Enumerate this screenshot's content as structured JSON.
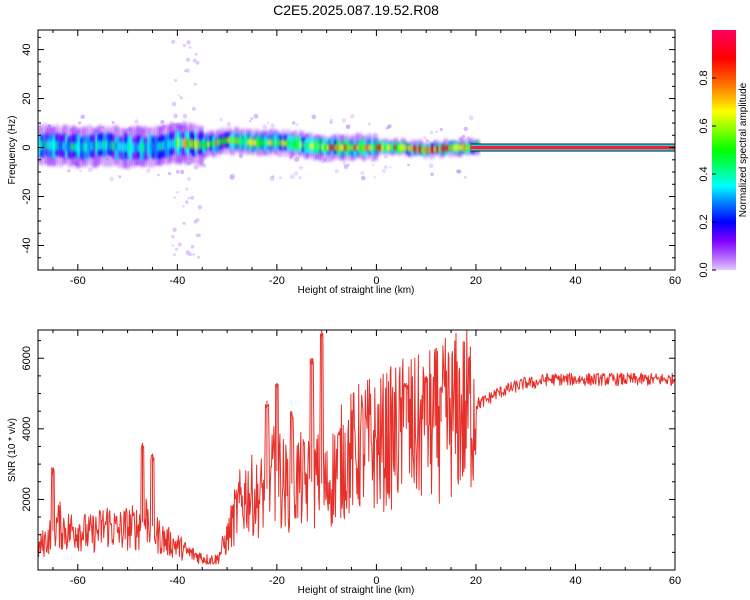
{
  "title": "C2E5.2025.087.19.52.R08",
  "colors": {
    "snr_line": "#e8302a",
    "colormap": [
      "#e6c8ff",
      "#b86cff",
      "#8000ff",
      "#0000ff",
      "#0080ff",
      "#00ffff",
      "#00ff80",
      "#00ff00",
      "#80ff00",
      "#ffff00",
      "#ff8000",
      "#ff0000",
      "#ff0060"
    ]
  },
  "chart_data": [
    {
      "type": "heatmap",
      "name": "spectrogram",
      "xlabel": "Height of straight line (km)",
      "ylabel": "Frequency (Hz)",
      "xlim": [
        -68,
        60
      ],
      "ylim": [
        -50,
        48
      ],
      "xticks": [
        -60,
        -40,
        -20,
        0,
        20,
        40,
        60
      ],
      "yticks": [
        -40,
        -20,
        0,
        20,
        40
      ],
      "ridge": [
        {
          "x": -66,
          "y": 1
        },
        {
          "x": -60,
          "y": 0
        },
        {
          "x": -55,
          "y": 1
        },
        {
          "x": -50,
          "y": 0
        },
        {
          "x": -45,
          "y": 0
        },
        {
          "x": -40,
          "y": 2
        },
        {
          "x": -35,
          "y": 1
        },
        {
          "x": -30,
          "y": 3
        },
        {
          "x": -25,
          "y": 2
        },
        {
          "x": -20,
          "y": 2
        },
        {
          "x": -15,
          "y": 1
        },
        {
          "x": -10,
          "y": 0
        },
        {
          "x": -5,
          "y": 0
        },
        {
          "x": 0,
          "y": 0
        },
        {
          "x": 5,
          "y": 0
        },
        {
          "x": 10,
          "y": -1
        },
        {
          "x": 15,
          "y": 0
        },
        {
          "x": 20,
          "y": 0
        },
        {
          "x": 60,
          "y": 0
        }
      ],
      "colorbar": {
        "label": "Normalized spectral amplitude",
        "ticks": [
          "0.0",
          "0.2",
          "0.4",
          "0.6",
          "0.8"
        ],
        "tick_values": [
          0,
          0.2,
          0.4,
          0.6,
          0.8
        ],
        "range": [
          0,
          1
        ]
      }
    },
    {
      "type": "line",
      "name": "snr",
      "xlabel": "Height of straight line (km)",
      "ylabel": "SNR (10 * v/v)",
      "xlim": [
        -68,
        60
      ],
      "ylim": [
        0,
        6800
      ],
      "xticks": [
        -60,
        -40,
        -20,
        0,
        20,
        40,
        60
      ],
      "yticks": [
        2000,
        4000,
        6000
      ],
      "series": [
        {
          "color": "#e8302a",
          "x": [
            -68,
            -66,
            -64,
            -62,
            -60,
            -58,
            -56,
            -54,
            -52,
            -50,
            -48,
            -46,
            -44,
            -42,
            -40,
            -38,
            -36,
            -34,
            -32,
            -30,
            -28,
            -26,
            -24,
            -22,
            -20,
            -18,
            -16,
            -14,
            -12,
            -10,
            -8,
            -6,
            -4,
            -2,
            0,
            2,
            4,
            6,
            8,
            10,
            12,
            14,
            16,
            18,
            20,
            22,
            24,
            26,
            28,
            30,
            32,
            34,
            36,
            38,
            40,
            42,
            44,
            46,
            48,
            50,
            52,
            54,
            56,
            58,
            60
          ],
          "y": [
            600,
            900,
            1300,
            1100,
            1200,
            1000,
            1100,
            1300,
            1100,
            1200,
            1200,
            1500,
            1000,
            800,
            700,
            500,
            400,
            300,
            300,
            900,
            1700,
            2200,
            2000,
            2300,
            2800,
            2300,
            2600,
            2400,
            2600,
            2300,
            2900,
            3200,
            3400,
            3600,
            3500,
            3700,
            3800,
            4000,
            3900,
            4100,
            4100,
            4300,
            4400,
            4500,
            4700,
            4800,
            5000,
            5100,
            5200,
            5300,
            5300,
            5400,
            5400,
            5400,
            5400,
            5400,
            5400,
            5400,
            5400,
            5400,
            5400,
            5400,
            5400,
            5400,
            5400
          ],
          "peaks": [
            {
              "x": -65,
              "y": 2900
            },
            {
              "x": -47,
              "y": 3600
            },
            {
              "x": -45,
              "y": 3300
            },
            {
              "x": -22,
              "y": 4800
            },
            {
              "x": -20,
              "y": 5300
            },
            {
              "x": -17,
              "y": 4500
            },
            {
              "x": -13,
              "y": 6000
            },
            {
              "x": -11,
              "y": 6800
            },
            {
              "x": 6,
              "y": 5300
            },
            {
              "x": 10,
              "y": 5500
            },
            {
              "x": 13,
              "y": 5200
            }
          ]
        }
      ]
    }
  ]
}
